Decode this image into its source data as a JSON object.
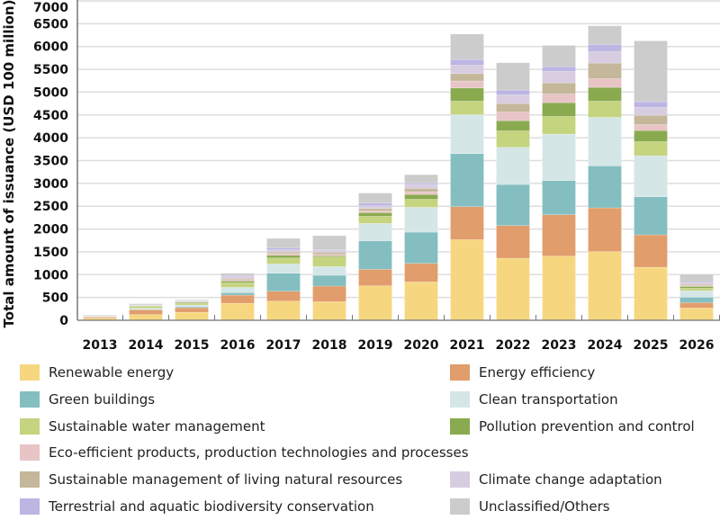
{
  "chart_data": {
    "type": "bar",
    "stacked": true,
    "title": "",
    "xlabel": "",
    "ylabel": "Total amount of issuance (USD 100 million)",
    "ylim": [
      0,
      7000
    ],
    "yticks": [
      0,
      500,
      1000,
      1500,
      2000,
      2500,
      3000,
      3500,
      4000,
      4500,
      5000,
      5500,
      6000,
      6500,
      7000
    ],
    "grid": true,
    "legend_position": "bottom",
    "categories": [
      "2013",
      "2014",
      "2015",
      "2016",
      "2017",
      "2018",
      "2019",
      "2020",
      "2021",
      "2022",
      "2023",
      "2024",
      "2025",
      "2026"
    ],
    "series": [
      {
        "name": "Renewable energy",
        "color": "#f6d780",
        "values": [
          46,
          125,
          177,
          374,
          420,
          407,
          756,
          841,
          1767,
          1360,
          1406,
          1505,
          1163,
          269
        ]
      },
      {
        "name": "Energy efficiency",
        "color": "#e19d6b",
        "values": [
          26,
          105,
          99,
          177,
          217,
          342,
          361,
          407,
          723,
          716,
          907,
          959,
          710,
          118
        ]
      },
      {
        "name": "Green buildings",
        "color": "#84bec0",
        "values": [
          3,
          7,
          20,
          53,
          394,
          237,
          624,
          683,
          1163,
          900,
          749,
          920,
          834,
          118
        ]
      },
      {
        "name": "Clean transportation",
        "color": "#d5e6e6",
        "values": [
          5,
          26,
          39,
          118,
          204,
          191,
          381,
          545,
          854,
          815,
          1018,
          1064,
          900,
          145
        ]
      },
      {
        "name": "Sustainable water management",
        "color": "#c5d47f",
        "values": [
          7,
          39,
          39,
          99,
          131,
          210,
          158,
          177,
          296,
          361,
          388,
          355,
          309,
          53
        ]
      },
      {
        "name": "Pollution prevention and control",
        "color": "#8aaa50",
        "values": [
          3,
          13,
          20,
          39,
          59,
          26,
          79,
          105,
          289,
          223,
          302,
          302,
          243,
          39
        ]
      },
      {
        "name": "Eco-efficient products, production technologies and processes",
        "color": "#e8c4c6",
        "values": [
          2,
          7,
          5,
          33,
          39,
          33,
          40,
          59,
          151,
          191,
          191,
          191,
          131,
          20
        ]
      },
      {
        "name": "Sustainable management of living natural resources",
        "color": "#c4b79a",
        "values": [
          2,
          7,
          7,
          26,
          33,
          46,
          50,
          72,
          164,
          184,
          243,
          342,
          204,
          26
        ]
      },
      {
        "name": "Climate change adaptation",
        "color": "#d8cde0",
        "values": [
          2,
          5,
          13,
          46,
          46,
          33,
          60,
          85,
          184,
          191,
          250,
          250,
          171,
          33
        ]
      },
      {
        "name": "Terrestrial and aquatic biodiversity conservation",
        "color": "#bdb5e2",
        "values": [
          2,
          3,
          7,
          20,
          46,
          20,
          59,
          33,
          125,
          105,
          105,
          158,
          125,
          26
        ]
      },
      {
        "name": "Unclassified/Others",
        "color": "#cccccc",
        "values": [
          14,
          26,
          20,
          46,
          204,
          309,
          220,
          184,
          558,
          598,
          466,
          407,
          1334,
          164
        ]
      }
    ]
  }
}
